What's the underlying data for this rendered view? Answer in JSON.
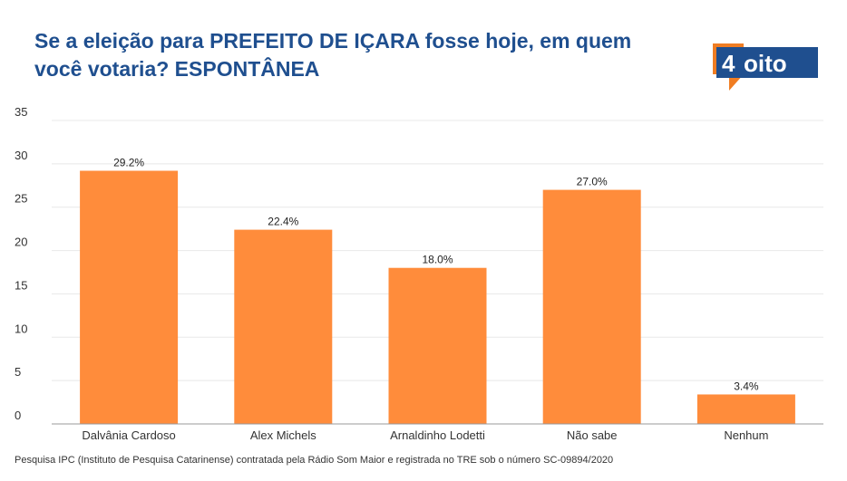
{
  "title": "Se a eleição para PREFEITO DE IÇARA fosse hoje, em quem você votaria? ESPONTÂNEA",
  "logo": {
    "digit": "4",
    "text": "oito",
    "color_dark": "#1f4f8f",
    "color_accent": "#f07d22"
  },
  "footer": "Pesquisa IPC (Instituto de Pesquisa Catarinense) contratada pela Rádio Som Maior e registrada no TRE sob o número SC-09894/2020",
  "colors": {
    "bar": "#ff8c3b",
    "title": "#1f4f8f",
    "grid": "#e8e8e8",
    "axis": "#999999"
  },
  "chart_data": {
    "type": "bar",
    "title": "Se a eleição para PREFEITO DE IÇARA fosse hoje, em quem você votaria? ESPONTÂNEA",
    "categories": [
      "Dalvânia Cardoso",
      "Alex Michels",
      "Arnaldinho Lodetti",
      "Não sabe",
      "Nenhum"
    ],
    "values": [
      29.2,
      22.4,
      18.0,
      27.0,
      3.4
    ],
    "value_labels": [
      "29.2%",
      "22.4%",
      "18.0%",
      "27.0%",
      "3.4%"
    ],
    "ylim": [
      0,
      35
    ],
    "yticks": [
      0,
      5,
      10,
      15,
      20,
      25,
      30,
      35
    ],
    "xlabel": "",
    "ylabel": "",
    "grid": true,
    "legend": "none"
  }
}
